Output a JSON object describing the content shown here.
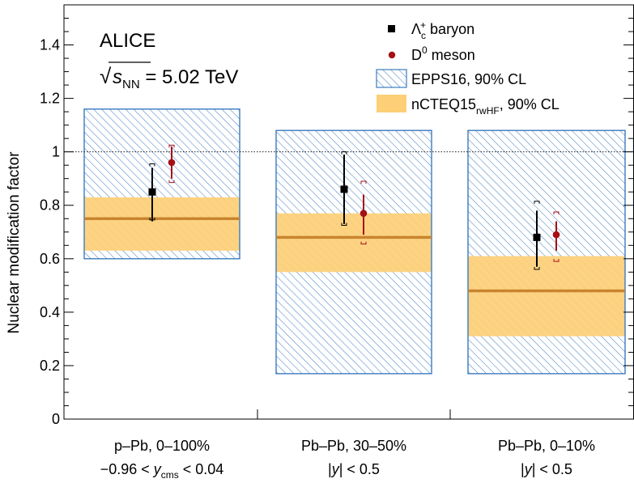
{
  "chart_data": {
    "type": "bar",
    "title": "ALICE",
    "subtitle": {
      "sqrt": "√",
      "s": "s",
      "sub": "NN",
      "rest": " = 5.02 TeV"
    },
    "ylabel": "Nuclear modification factor",
    "xlabel": "",
    "ylim": [
      0,
      1.55
    ],
    "yticks": [
      {
        "v": 0,
        "label": "0"
      },
      {
        "v": 0.2,
        "label": "0.2"
      },
      {
        "v": 0.4,
        "label": "0.4"
      },
      {
        "v": 0.6,
        "label": "0.6"
      },
      {
        "v": 0.8,
        "label": "0.8"
      },
      {
        "v": 1.0,
        "label": "1"
      },
      {
        "v": 1.2,
        "label": "1.2"
      },
      {
        "v": 1.4,
        "label": "1.4"
      }
    ],
    "reference_line": 1.0,
    "categories": [
      {
        "line1": "p–Pb, 0–100%",
        "line2_pre": "−0.96 < ",
        "line2_var": "y",
        "line2_sub": "cms",
        "line2_post": " < 0.04"
      },
      {
        "line1": "Pb–Pb, 30–50%",
        "line2_pre": "|",
        "line2_var": "y",
        "line2_sub": "",
        "line2_post": "| < 0.5"
      },
      {
        "line1": "Pb–Pb, 0–10%",
        "line2_pre": "|",
        "line2_var": "y",
        "line2_sub": "",
        "line2_post": "| < 0.5"
      }
    ],
    "models": {
      "epps16": {
        "name": "EPPS16, 90% CL",
        "bands": [
          [
            0.6,
            1.16
          ],
          [
            0.17,
            1.08
          ],
          [
            0.17,
            1.08
          ]
        ]
      },
      "ncteq15": {
        "name_main": "nCTEQ15",
        "name_sub": "rwHF",
        "name_post": ", 90% CL",
        "bands": [
          [
            0.63,
            0.83
          ],
          [
            0.55,
            0.77
          ],
          [
            0.31,
            0.61
          ]
        ],
        "central": [
          0.75,
          0.68,
          0.48
        ]
      }
    },
    "series": [
      {
        "name_main": "Λ",
        "name_sub": "c",
        "name_sup": "+",
        "name_post": " baryon",
        "marker": "square",
        "color": "#000000",
        "values": [
          0.85,
          0.86,
          0.68
        ],
        "stat_lo": [
          0.74,
          0.73,
          0.57
        ],
        "stat_hi": [
          0.94,
          0.99,
          0.78
        ],
        "syst_lo": [
          0.745,
          0.725,
          0.56
        ],
        "syst_hi": [
          0.955,
          1.0,
          0.815
        ]
      },
      {
        "name_main": "D",
        "name_sub": "",
        "name_sup": "0",
        "name_post": " meson",
        "marker": "circle",
        "color": "#a50f15",
        "values": [
          0.96,
          0.77,
          0.69
        ],
        "stat_lo": [
          0.9,
          0.69,
          0.63
        ],
        "stat_hi": [
          1.02,
          0.84,
          0.74
        ],
        "syst_lo": [
          0.885,
          0.655,
          0.59
        ],
        "syst_hi": [
          1.025,
          0.89,
          0.775
        ]
      }
    ],
    "colors": {
      "epps_hatch": "#3b7bbf",
      "nc_fill": "#fdcf77",
      "nc_line": "#c8842e",
      "d0": "#a50f15"
    },
    "grid": false,
    "legend_position": "top-right"
  }
}
